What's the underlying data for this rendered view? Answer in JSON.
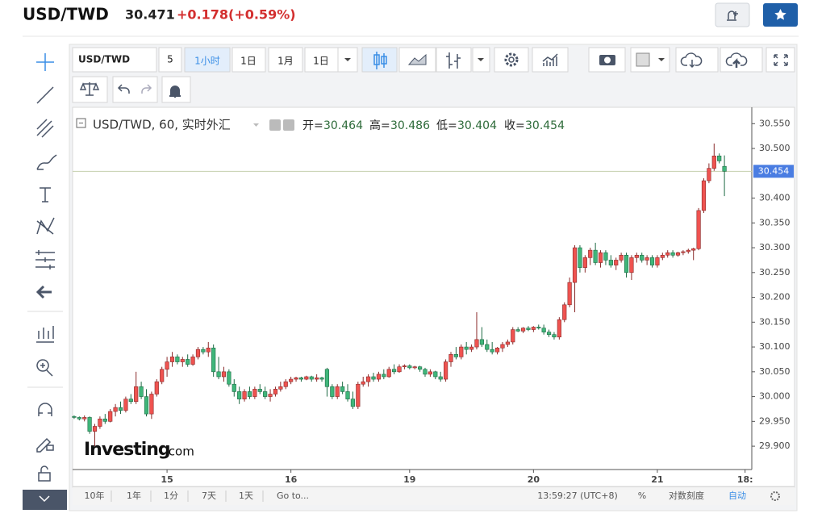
{
  "header": {
    "symbol": "USD/TWD",
    "price": "30.471",
    "change": "+0.178",
    "change_pct": "(+0.59%)"
  },
  "toolbar": {
    "symbol": "USD/TWD",
    "interval": "5",
    "buttons": [
      "1小时",
      "1日",
      "1月",
      "1日"
    ]
  },
  "bottom_bar": {
    "ranges": [
      "10年",
      "1年",
      "1分",
      "7天",
      "1天"
    ],
    "goto": "Go to...",
    "clock": "13:59:27 (UTC+8)",
    "percent": "%",
    "log": "对数刻度",
    "auto": "自动"
  },
  "watermark": {
    "brand": "Investing",
    "suffix": ".com"
  },
  "chart_data": {
    "type": "candlestick",
    "legend_title": "USD/TWD, 60, 实时外汇",
    "ohlc_labels": [
      "开=",
      "高=",
      "低=",
      "收="
    ],
    "up_color": "#ef5350",
    "down_color": "#3fb67a",
    "grid": false,
    "xlim": [
      -0.3,
      131.3
    ],
    "xticks": [
      {
        "value": 18,
        "label": "15"
      },
      {
        "value": 42,
        "label": "16"
      },
      {
        "value": 65,
        "label": "19"
      },
      {
        "value": 89,
        "label": "20"
      },
      {
        "value": 113,
        "label": "21"
      },
      {
        "value": 130,
        "label": "18:"
      }
    ],
    "ylim": [
      29.853,
      30.583
    ],
    "yticks": [
      {
        "value": 30.55,
        "label": "30.550"
      },
      {
        "value": 30.5,
        "label": "30.500"
      },
      {
        "value": 30.4,
        "label": "30.400"
      },
      {
        "value": 30.35,
        "label": "30.350"
      },
      {
        "value": 30.3,
        "label": "30.300"
      },
      {
        "value": 30.25,
        "label": "30.250"
      },
      {
        "value": 30.2,
        "label": "30.200"
      },
      {
        "value": 30.15,
        "label": "30.150"
      },
      {
        "value": 30.1,
        "label": "30.100"
      },
      {
        "value": 30.05,
        "label": "30.050"
      },
      {
        "value": 30,
        "label": "30.000"
      },
      {
        "value": 29.95,
        "label": "29.950"
      },
      {
        "value": 29.9,
        "label": "29.900"
      }
    ],
    "ohlc": [
      [
        29.96,
        29.962,
        29.955,
        29.958
      ],
      [
        29.958,
        29.96,
        29.952,
        29.955
      ],
      [
        29.955,
        29.962,
        29.95,
        29.958
      ],
      [
        29.958,
        29.96,
        29.925,
        29.93
      ],
      [
        29.93,
        29.945,
        29.9,
        29.94
      ],
      [
        29.94,
        29.96,
        29.935,
        29.955
      ],
      [
        29.955,
        29.965,
        29.945,
        29.95
      ],
      [
        29.95,
        29.975,
        29.948,
        29.97
      ],
      [
        29.97,
        29.985,
        29.96,
        29.978
      ],
      [
        29.978,
        29.99,
        29.965,
        29.972
      ],
      [
        29.972,
        30.0,
        29.968,
        29.995
      ],
      [
        29.995,
        30.005,
        29.985,
        29.99
      ],
      [
        29.99,
        30.05,
        29.985,
        30.02
      ],
      [
        30.02,
        30.03,
        29.995,
        30.0
      ],
      [
        30.0,
        30.015,
        29.96,
        29.965
      ],
      [
        29.965,
        30.01,
        29.955,
        30.005
      ],
      [
        30.005,
        30.035,
        30.0,
        30.03
      ],
      [
        30.03,
        30.06,
        30.025,
        30.055
      ],
      [
        30.055,
        30.08,
        30.04,
        30.07
      ],
      [
        30.07,
        30.09,
        30.06,
        30.08
      ],
      [
        30.08,
        30.085,
        30.065,
        30.07
      ],
      [
        30.07,
        30.08,
        30.06,
        30.075
      ],
      [
        30.075,
        30.085,
        30.06,
        30.065
      ],
      [
        30.065,
        30.085,
        30.062,
        30.08
      ],
      [
        30.08,
        30.1,
        30.075,
        30.095
      ],
      [
        30.095,
        30.1,
        30.085,
        30.09
      ],
      [
        30.09,
        30.11,
        30.08,
        30.098
      ],
      [
        30.098,
        30.105,
        30.04,
        30.05
      ],
      [
        30.05,
        30.08,
        30.035,
        30.04
      ],
      [
        30.04,
        30.06,
        30.03,
        30.05
      ],
      [
        30.05,
        30.055,
        30.02,
        30.025
      ],
      [
        30.025,
        30.035,
        30.0,
        30.01
      ],
      [
        30.01,
        30.02,
        29.985,
        29.995
      ],
      [
        29.995,
        30.015,
        29.99,
        30.01
      ],
      [
        30.01,
        30.02,
        29.995,
        30.0
      ],
      [
        30.0,
        30.02,
        29.995,
        30.015
      ],
      [
        30.015,
        30.025,
        30.005,
        30.01
      ],
      [
        30.01,
        30.02,
        29.995,
        30.0
      ],
      [
        30.0,
        30.015,
        29.99,
        30.005
      ],
      [
        30.005,
        30.02,
        30.0,
        30.015
      ],
      [
        30.015,
        30.03,
        30.01,
        30.02
      ],
      [
        30.02,
        30.035,
        30.015,
        30.03
      ],
      [
        30.03,
        30.04,
        30.025,
        30.035
      ],
      [
        30.035,
        30.04,
        30.03,
        30.038
      ],
      [
        30.038,
        30.04,
        30.03,
        30.035
      ],
      [
        30.035,
        30.042,
        30.033,
        30.04
      ],
      [
        30.04,
        30.042,
        30.03,
        30.035
      ],
      [
        30.035,
        30.045,
        30.03,
        30.038
      ],
      [
        30.038,
        30.04,
        30.03,
        30.035
      ],
      [
        30.055,
        30.058,
        30.0,
        30.02
      ],
      [
        30.02,
        30.025,
        29.995,
        30.0
      ],
      [
        30.0,
        30.025,
        29.995,
        30.02
      ],
      [
        30.02,
        30.03,
        30.005,
        30.01
      ],
      [
        30.01,
        30.025,
        29.99,
        29.995
      ],
      [
        29.995,
        30.01,
        29.975,
        29.98
      ],
      [
        29.98,
        30.03,
        29.975,
        30.025
      ],
      [
        30.025,
        30.04,
        30.02,
        30.03
      ],
      [
        30.03,
        30.045,
        30.02,
        30.04
      ],
      [
        30.04,
        30.048,
        30.03,
        30.035
      ],
      [
        30.035,
        30.05,
        30.03,
        30.045
      ],
      [
        30.045,
        30.055,
        30.035,
        30.04
      ],
      [
        30.04,
        30.06,
        30.038,
        30.055
      ],
      [
        30.055,
        30.065,
        30.045,
        30.05
      ],
      [
        30.05,
        30.065,
        30.048,
        30.06
      ],
      [
        30.06,
        30.065,
        30.055,
        30.062
      ],
      [
        30.062,
        30.065,
        30.055,
        30.058
      ],
      [
        30.058,
        30.062,
        30.055,
        30.06
      ],
      [
        30.06,
        30.062,
        30.05,
        30.055
      ],
      [
        30.055,
        30.058,
        30.04,
        30.045
      ],
      [
        30.045,
        30.055,
        30.04,
        30.05
      ],
      [
        30.05,
        30.052,
        30.035,
        30.04
      ],
      [
        30.04,
        30.05,
        30.03,
        30.035
      ],
      [
        30.035,
        30.075,
        30.03,
        30.07
      ],
      [
        30.07,
        30.09,
        30.06,
        30.085
      ],
      [
        30.085,
        30.1,
        30.075,
        30.08
      ],
      [
        30.08,
        30.105,
        30.075,
        30.1
      ],
      [
        30.1,
        30.11,
        30.085,
        30.095
      ],
      [
        30.095,
        30.105,
        30.09,
        30.1
      ],
      [
        30.1,
        30.17,
        30.095,
        30.115
      ],
      [
        30.115,
        30.14,
        30.1,
        30.105
      ],
      [
        30.105,
        30.115,
        30.09,
        30.095
      ],
      [
        30.095,
        30.11,
        30.085,
        30.09
      ],
      [
        30.09,
        30.1,
        30.085,
        30.098
      ],
      [
        30.098,
        30.11,
        30.09,
        30.105
      ],
      [
        30.105,
        30.115,
        30.1,
        30.11
      ],
      [
        30.11,
        30.14,
        30.105,
        30.135
      ],
      [
        30.135,
        30.14,
        30.13,
        30.132
      ],
      [
        30.132,
        30.14,
        30.128,
        30.138
      ],
      [
        30.138,
        30.142,
        30.132,
        30.135
      ],
      [
        30.135,
        30.142,
        30.13,
        30.14
      ],
      [
        30.14,
        30.145,
        30.135,
        30.138
      ],
      [
        30.138,
        30.145,
        30.125,
        30.13
      ],
      [
        30.13,
        30.135,
        30.12,
        30.125
      ],
      [
        30.125,
        30.13,
        30.115,
        30.12
      ],
      [
        30.12,
        30.16,
        30.115,
        30.155
      ],
      [
        30.155,
        30.19,
        30.15,
        30.185
      ],
      [
        30.185,
        30.24,
        30.18,
        30.23
      ],
      [
        30.23,
        30.305,
        30.17,
        30.3
      ],
      [
        30.3,
        30.305,
        30.25,
        30.26
      ],
      [
        30.26,
        30.285,
        30.25,
        30.28
      ],
      [
        30.28,
        30.3,
        30.265,
        30.295
      ],
      [
        30.295,
        30.31,
        30.265,
        30.27
      ],
      [
        30.27,
        30.295,
        30.26,
        30.29
      ],
      [
        30.29,
        30.295,
        30.265,
        30.275
      ],
      [
        30.275,
        30.285,
        30.26,
        30.265
      ],
      [
        30.265,
        30.28,
        30.255,
        30.275
      ],
      [
        30.275,
        30.29,
        30.27,
        30.285
      ],
      [
        30.285,
        30.29,
        30.24,
        30.25
      ],
      [
        30.25,
        30.285,
        30.235,
        30.28
      ],
      [
        30.28,
        30.29,
        30.27,
        30.285
      ],
      [
        30.285,
        30.29,
        30.27,
        30.275
      ],
      [
        30.275,
        30.285,
        30.265,
        30.28
      ],
      [
        30.28,
        30.285,
        30.26,
        30.265
      ],
      [
        30.265,
        30.285,
        30.26,
        30.28
      ],
      [
        30.28,
        30.29,
        30.275,
        30.285
      ],
      [
        30.285,
        30.295,
        30.28,
        30.29
      ],
      [
        30.29,
        30.295,
        30.28,
        30.285
      ],
      [
        30.285,
        30.292,
        30.282,
        30.29
      ],
      [
        30.29,
        30.295,
        30.285,
        30.292
      ],
      [
        30.292,
        30.298,
        30.288,
        30.295
      ],
      [
        30.295,
        30.3,
        30.275,
        30.298
      ],
      [
        30.298,
        30.38,
        30.295,
        30.375
      ],
      [
        30.375,
        30.44,
        30.37,
        30.435
      ],
      [
        30.435,
        30.47,
        30.43,
        30.46
      ],
      [
        30.46,
        30.51,
        30.455,
        30.485
      ],
      [
        30.485,
        30.49,
        30.47,
        30.475
      ],
      [
        30.464,
        30.486,
        30.404,
        30.454
      ]
    ]
  }
}
